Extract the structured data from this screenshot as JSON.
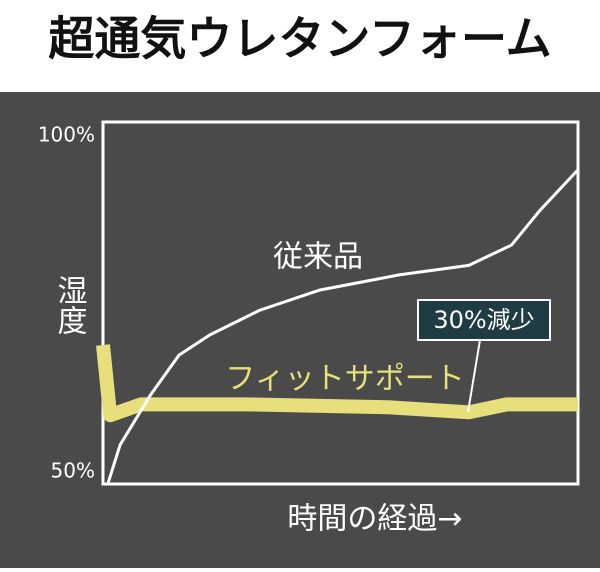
{
  "chart_data": {
    "type": "line",
    "title": "超通気ウレタンフォーム",
    "ylabel": "湿度",
    "xlabel": "時間の経過→",
    "xlim": [
      0,
      100
    ],
    "ylim": [
      50,
      100
    ],
    "yticks": [
      {
        "value": 50,
        "label": "50%"
      },
      {
        "value": 100,
        "label": "100%"
      }
    ],
    "series": [
      {
        "name": "従来品",
        "color": "#ffffff",
        "x": [
          1,
          3.6,
          10,
          16,
          22.5,
          33,
          45.7,
          62.5,
          77,
          86,
          92,
          100
        ],
        "values": [
          50,
          55.4,
          62.3,
          67.8,
          70.6,
          74,
          76.8,
          78.9,
          80.2,
          83,
          87.8,
          93.4
        ]
      },
      {
        "name": "フィットサポート",
        "color": "#e6df7c",
        "x": [
          0,
          1.5,
          8,
          30,
          60,
          77,
          85,
          100
        ],
        "values": [
          69.2,
          59.5,
          61,
          61,
          60.6,
          59.9,
          61,
          61
        ]
      }
    ],
    "annotation": "30%減少"
  }
}
